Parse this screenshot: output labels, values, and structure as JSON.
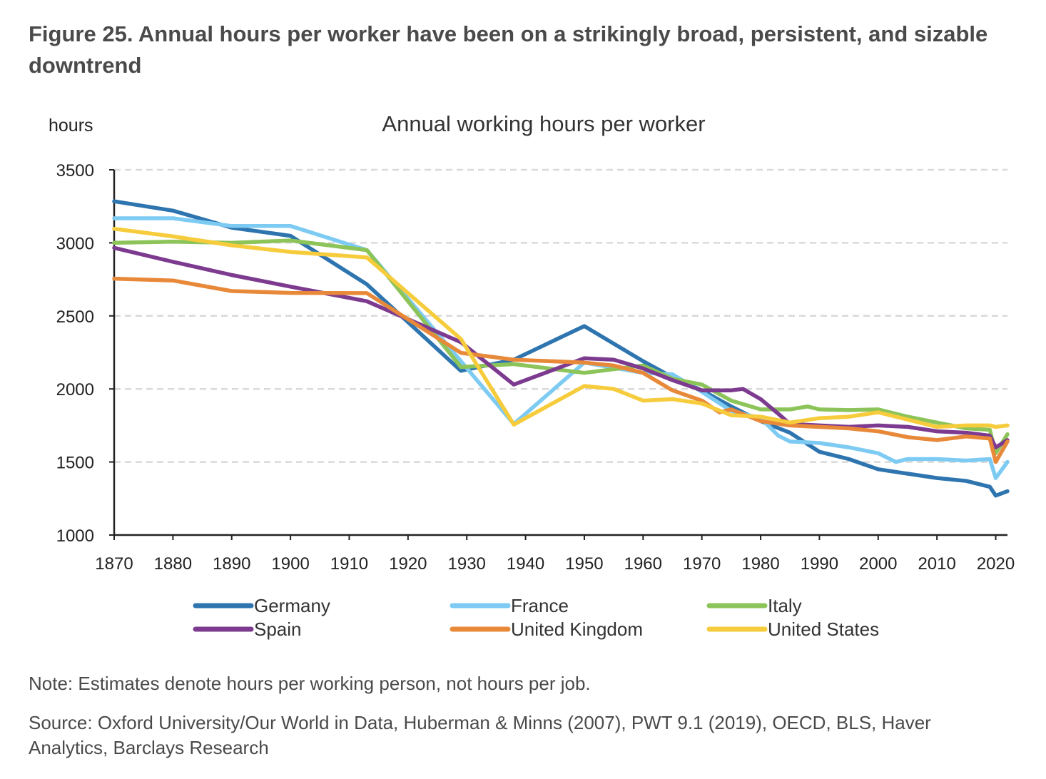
{
  "figure": {
    "title": "Figure 25. Annual hours per worker have been on a strikingly broad, persistent, and sizable downtrend",
    "note": "Note: Estimates denote hours per working person, not hours per job.",
    "source": "Source: Oxford University/Our World in Data, Huberman & Minns (2007), PWT 9.1 (2019), OECD, BLS, Haver Analytics, Barclays Research"
  },
  "chart_data": {
    "type": "line",
    "title": "Annual working hours per worker",
    "ylabel": "hours",
    "xlabel": "",
    "xlim": [
      1870,
      2022
    ],
    "ylim": [
      1000,
      3500
    ],
    "x_ticks": [
      1870,
      1880,
      1890,
      1900,
      1910,
      1920,
      1930,
      1940,
      1950,
      1960,
      1970,
      1980,
      1990,
      2000,
      2010,
      2020
    ],
    "y_ticks": [
      1000,
      1500,
      2000,
      2500,
      3000,
      3500
    ],
    "grid": "horizontal dashed",
    "legend": "bottom",
    "series": [
      {
        "name": "Germany",
        "color": "#2e75b0",
        "points": [
          [
            1870,
            3284
          ],
          [
            1880,
            3220
          ],
          [
            1890,
            3104
          ],
          [
            1900,
            3048
          ],
          [
            1913,
            2716
          ],
          [
            1929,
            2124
          ],
          [
            1938,
            2200
          ],
          [
            1950,
            2430
          ],
          [
            1960,
            2190
          ],
          [
            1965,
            2080
          ],
          [
            1970,
            1990
          ],
          [
            1975,
            1880
          ],
          [
            1980,
            1780
          ],
          [
            1985,
            1700
          ],
          [
            1990,
            1570
          ],
          [
            1995,
            1520
          ],
          [
            2000,
            1450
          ],
          [
            2005,
            1420
          ],
          [
            2010,
            1390
          ],
          [
            2015,
            1370
          ],
          [
            2019,
            1330
          ],
          [
            2020,
            1270
          ],
          [
            2022,
            1300
          ]
        ]
      },
      {
        "name": "France",
        "color": "#7dcbf3",
        "points": [
          [
            1870,
            3168
          ],
          [
            1880,
            3168
          ],
          [
            1890,
            3115
          ],
          [
            1900,
            3115
          ],
          [
            1913,
            2950
          ],
          [
            1929,
            2190
          ],
          [
            1938,
            1760
          ],
          [
            1950,
            2180
          ],
          [
            1960,
            2110
          ],
          [
            1965,
            2100
          ],
          [
            1970,
            1980
          ],
          [
            1975,
            1850
          ],
          [
            1980,
            1800
          ],
          [
            1983,
            1680
          ],
          [
            1985,
            1640
          ],
          [
            1990,
            1630
          ],
          [
            1995,
            1600
          ],
          [
            2000,
            1560
          ],
          [
            2003,
            1500
          ],
          [
            2005,
            1520
          ],
          [
            2010,
            1520
          ],
          [
            2015,
            1510
          ],
          [
            2019,
            1520
          ],
          [
            2020,
            1390
          ],
          [
            2022,
            1500
          ]
        ]
      },
      {
        "name": "Italy",
        "color": "#8cc459",
        "points": [
          [
            1870,
            3000
          ],
          [
            1880,
            3008
          ],
          [
            1890,
            3000
          ],
          [
            1900,
            3016
          ],
          [
            1913,
            2950
          ],
          [
            1929,
            2150
          ],
          [
            1938,
            2170
          ],
          [
            1950,
            2110
          ],
          [
            1960,
            2160
          ],
          [
            1965,
            2070
          ],
          [
            1970,
            2030
          ],
          [
            1975,
            1920
          ],
          [
            1980,
            1860
          ],
          [
            1985,
            1860
          ],
          [
            1988,
            1880
          ],
          [
            1990,
            1860
          ],
          [
            1995,
            1855
          ],
          [
            2000,
            1860
          ],
          [
            2003,
            1830
          ],
          [
            2005,
            1810
          ],
          [
            2010,
            1770
          ],
          [
            2015,
            1730
          ],
          [
            2019,
            1720
          ],
          [
            2020,
            1560
          ],
          [
            2022,
            1690
          ]
        ]
      },
      {
        "name": "Spain",
        "color": "#7d3b90",
        "points": [
          [
            1870,
            2966
          ],
          [
            1880,
            2870
          ],
          [
            1890,
            2780
          ],
          [
            1900,
            2700
          ],
          [
            1913,
            2600
          ],
          [
            1929,
            2320
          ],
          [
            1938,
            2030
          ],
          [
            1950,
            2210
          ],
          [
            1955,
            2200
          ],
          [
            1960,
            2140
          ],
          [
            1965,
            2060
          ],
          [
            1970,
            1990
          ],
          [
            1975,
            1990
          ],
          [
            1977,
            2000
          ],
          [
            1980,
            1930
          ],
          [
            1983,
            1830
          ],
          [
            1985,
            1760
          ],
          [
            1990,
            1750
          ],
          [
            1995,
            1740
          ],
          [
            2000,
            1750
          ],
          [
            2005,
            1740
          ],
          [
            2010,
            1710
          ],
          [
            2015,
            1700
          ],
          [
            2019,
            1680
          ],
          [
            2020,
            1600
          ],
          [
            2022,
            1650
          ]
        ]
      },
      {
        "name": "United Kingdom",
        "color": "#e8893a",
        "points": [
          [
            1870,
            2755
          ],
          [
            1880,
            2742
          ],
          [
            1890,
            2670
          ],
          [
            1900,
            2657
          ],
          [
            1913,
            2656
          ],
          [
            1929,
            2247
          ],
          [
            1938,
            2200
          ],
          [
            1950,
            2180
          ],
          [
            1955,
            2160
          ],
          [
            1960,
            2110
          ],
          [
            1965,
            1990
          ],
          [
            1970,
            1920
          ],
          [
            1973,
            1840
          ],
          [
            1975,
            1860
          ],
          [
            1980,
            1780
          ],
          [
            1985,
            1750
          ],
          [
            1990,
            1740
          ],
          [
            1995,
            1730
          ],
          [
            2000,
            1710
          ],
          [
            2005,
            1670
          ],
          [
            2010,
            1650
          ],
          [
            2015,
            1675
          ],
          [
            2019,
            1660
          ],
          [
            2020,
            1500
          ],
          [
            2022,
            1640
          ]
        ]
      },
      {
        "name": "United States",
        "color": "#f6cc3c",
        "points": [
          [
            1870,
            3096
          ],
          [
            1880,
            3044
          ],
          [
            1890,
            2983
          ],
          [
            1900,
            2938
          ],
          [
            1913,
            2900
          ],
          [
            1929,
            2342
          ],
          [
            1938,
            1756
          ],
          [
            1950,
            2020
          ],
          [
            1955,
            2000
          ],
          [
            1960,
            1920
          ],
          [
            1965,
            1930
          ],
          [
            1970,
            1900
          ],
          [
            1975,
            1820
          ],
          [
            1980,
            1810
          ],
          [
            1985,
            1770
          ],
          [
            1990,
            1800
          ],
          [
            1995,
            1810
          ],
          [
            2000,
            1840
          ],
          [
            2005,
            1790
          ],
          [
            2010,
            1740
          ],
          [
            2015,
            1750
          ],
          [
            2019,
            1750
          ],
          [
            2020,
            1740
          ],
          [
            2022,
            1750
          ]
        ]
      }
    ]
  }
}
